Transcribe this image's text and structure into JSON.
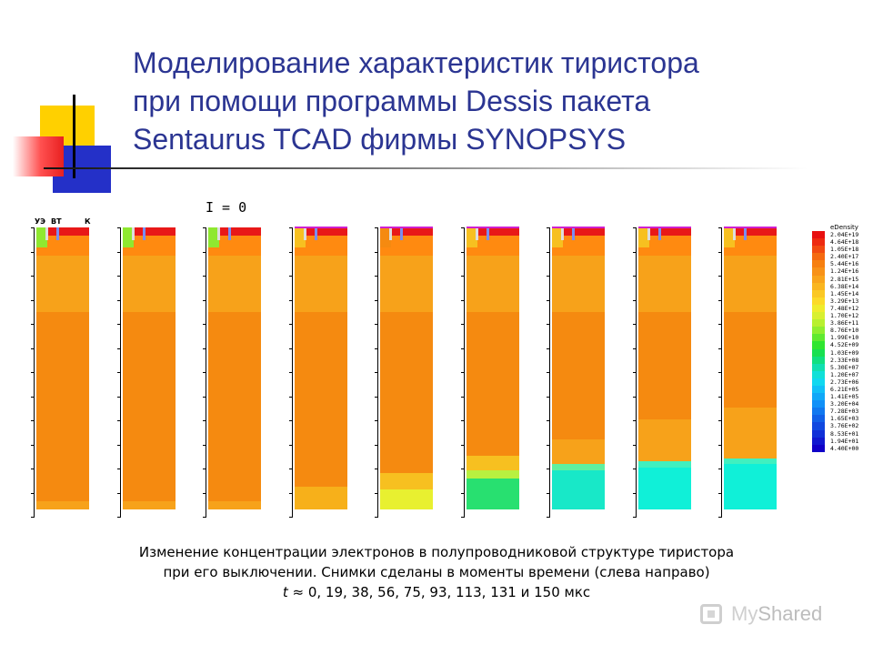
{
  "slide": {
    "title_lines": [
      "Моделирование характеристик тиристора",
      "при помощи программы Dessis пакета",
      "Sentaurus TCAD фирмы SYNOPSYS"
    ],
    "current_label": "I = 0",
    "electrode_labels": [
      "УЭ",
      "ВТ",
      "К"
    ]
  },
  "snapshots": [
    {
      "time": "0",
      "layers": [
        {
          "from": 0,
          "to": 0.03,
          "color": "#e81818"
        },
        {
          "from": 0.03,
          "to": 0.1,
          "color": "#ff8a10"
        },
        {
          "from": 0.1,
          "to": 0.3,
          "color": "#f7a21a"
        },
        {
          "from": 0.3,
          "to": 0.97,
          "color": "#f58a10"
        },
        {
          "from": 0.97,
          "to": 1.0,
          "color": "#f7a21a"
        }
      ]
    },
    {
      "time": "19",
      "layers": [
        {
          "from": 0,
          "to": 0.03,
          "color": "#e81818"
        },
        {
          "from": 0.03,
          "to": 0.1,
          "color": "#ff8a10"
        },
        {
          "from": 0.1,
          "to": 0.3,
          "color": "#f7a21a"
        },
        {
          "from": 0.3,
          "to": 0.97,
          "color": "#f58a10"
        },
        {
          "from": 0.97,
          "to": 1.0,
          "color": "#f7a21a"
        }
      ]
    },
    {
      "time": "38",
      "layers": [
        {
          "from": 0,
          "to": 0.03,
          "color": "#e81818"
        },
        {
          "from": 0.03,
          "to": 0.1,
          "color": "#ff8a10"
        },
        {
          "from": 0.1,
          "to": 0.3,
          "color": "#f7a21a"
        },
        {
          "from": 0.3,
          "to": 0.97,
          "color": "#f58a10"
        },
        {
          "from": 0.97,
          "to": 1.0,
          "color": "#f7a21a"
        }
      ]
    },
    {
      "time": "56",
      "layers": [
        {
          "from": 0,
          "to": 0.03,
          "color": "#e81818"
        },
        {
          "from": 0.03,
          "to": 0.1,
          "color": "#ff8a10"
        },
        {
          "from": 0.1,
          "to": 0.3,
          "color": "#f7a21a"
        },
        {
          "from": 0.3,
          "to": 0.92,
          "color": "#f58a10"
        },
        {
          "from": 0.92,
          "to": 1.0,
          "color": "#f7b01a"
        }
      ]
    },
    {
      "time": "75",
      "layers": [
        {
          "from": 0,
          "to": 0.03,
          "color": "#e81818"
        },
        {
          "from": 0.03,
          "to": 0.1,
          "color": "#ff8a10"
        },
        {
          "from": 0.1,
          "to": 0.3,
          "color": "#f7a21a"
        },
        {
          "from": 0.3,
          "to": 0.87,
          "color": "#f58a10"
        },
        {
          "from": 0.87,
          "to": 0.93,
          "color": "#f7c020"
        },
        {
          "from": 0.93,
          "to": 1.0,
          "color": "#e8f030"
        }
      ]
    },
    {
      "time": "93",
      "layers": [
        {
          "from": 0,
          "to": 0.03,
          "color": "#e81818"
        },
        {
          "from": 0.03,
          "to": 0.1,
          "color": "#ff8a10"
        },
        {
          "from": 0.1,
          "to": 0.3,
          "color": "#f7a21a"
        },
        {
          "from": 0.3,
          "to": 0.81,
          "color": "#f58a10"
        },
        {
          "from": 0.81,
          "to": 0.86,
          "color": "#f7c020"
        },
        {
          "from": 0.86,
          "to": 0.89,
          "color": "#b8f040"
        },
        {
          "from": 0.89,
          "to": 1.0,
          "color": "#28e070"
        }
      ]
    },
    {
      "time": "113",
      "layers": [
        {
          "from": 0,
          "to": 0.03,
          "color": "#e81818"
        },
        {
          "from": 0.03,
          "to": 0.1,
          "color": "#ff8a10"
        },
        {
          "from": 0.1,
          "to": 0.3,
          "color": "#f7a21a"
        },
        {
          "from": 0.3,
          "to": 0.75,
          "color": "#f58a10"
        },
        {
          "from": 0.75,
          "to": 0.84,
          "color": "#f7a21a"
        },
        {
          "from": 0.84,
          "to": 0.86,
          "color": "#60f0a0"
        },
        {
          "from": 0.86,
          "to": 1.0,
          "color": "#18e8c8"
        }
      ]
    },
    {
      "time": "131",
      "layers": [
        {
          "from": 0,
          "to": 0.03,
          "color": "#e81818"
        },
        {
          "from": 0.03,
          "to": 0.1,
          "color": "#ff8a10"
        },
        {
          "from": 0.1,
          "to": 0.3,
          "color": "#f7a21a"
        },
        {
          "from": 0.3,
          "to": 0.68,
          "color": "#f58a10"
        },
        {
          "from": 0.68,
          "to": 0.83,
          "color": "#f7a21a"
        },
        {
          "from": 0.83,
          "to": 0.85,
          "color": "#40f0c0"
        },
        {
          "from": 0.85,
          "to": 1.0,
          "color": "#10f0d8"
        }
      ]
    },
    {
      "time": "150",
      "layers": [
        {
          "from": 0,
          "to": 0.03,
          "color": "#e81818"
        },
        {
          "from": 0.03,
          "to": 0.1,
          "color": "#ff8a10"
        },
        {
          "from": 0.1,
          "to": 0.3,
          "color": "#f7a21a"
        },
        {
          "from": 0.3,
          "to": 0.64,
          "color": "#f58a10"
        },
        {
          "from": 0.64,
          "to": 0.82,
          "color": "#f7a21a"
        },
        {
          "from": 0.82,
          "to": 0.84,
          "color": "#40f0c0"
        },
        {
          "from": 0.84,
          "to": 1.0,
          "color": "#10f0d8"
        }
      ]
    }
  ],
  "legend": {
    "title": "eDensity",
    "entries": [
      {
        "label": "2.04E+19",
        "color": "#e81010"
      },
      {
        "label": "4.64E+18",
        "color": "#ee2a10"
      },
      {
        "label": "1.05E+18",
        "color": "#f24a10"
      },
      {
        "label": "2.40E+17",
        "color": "#f56a10"
      },
      {
        "label": "5.44E+16",
        "color": "#f78010"
      },
      {
        "label": "1.24E+16",
        "color": "#f89218"
      },
      {
        "label": "2.81E+15",
        "color": "#f9a41c"
      },
      {
        "label": "6.38E+14",
        "color": "#fab620"
      },
      {
        "label": "1.45E+14",
        "color": "#fbc824"
      },
      {
        "label": "3.29E+13",
        "color": "#fcda28"
      },
      {
        "label": "7.48E+12",
        "color": "#f0ec2c"
      },
      {
        "label": "1.70E+12",
        "color": "#d8f030"
      },
      {
        "label": "3.86E+11",
        "color": "#b8f030"
      },
      {
        "label": "8.76E+10",
        "color": "#90ee30"
      },
      {
        "label": "1.99E+10",
        "color": "#60ea30"
      },
      {
        "label": "4.52E+09",
        "color": "#30e630"
      },
      {
        "label": "1.03E+09",
        "color": "#18e050"
      },
      {
        "label": "2.33E+08",
        "color": "#10e080"
      },
      {
        "label": "5.30E+07",
        "color": "#10e0b0"
      },
      {
        "label": "1.20E+07",
        "color": "#10e0d8"
      },
      {
        "label": "2.73E+06",
        "color": "#10d8f0"
      },
      {
        "label": "6.21E+05",
        "color": "#10c0f8"
      },
      {
        "label": "1.41E+05",
        "color": "#10a8f8"
      },
      {
        "label": "3.20E+04",
        "color": "#1090f8"
      },
      {
        "label": "7.28E+03",
        "color": "#1078f0"
      },
      {
        "label": "1.65E+03",
        "color": "#1060e8"
      },
      {
        "label": "3.76E+02",
        "color": "#1048e0"
      },
      {
        "label": "8.53E+01",
        "color": "#1030d8"
      },
      {
        "label": "1.94E+01",
        "color": "#1018d0"
      },
      {
        "label": "4.40E+00",
        "color": "#1000c8"
      }
    ]
  },
  "caption": {
    "line1": "Изменение концентрации электронов  в полупроводниковой  структуре тиристора",
    "line2": "при его выключении. Снимки сделаны в моменты времени (слева направо)",
    "t_symbol": "t",
    "approx_symbol": "≈",
    "times_text": "0,  19,  38,  56,  75,  93,  113,  131  и  150",
    "unit": "мкс"
  },
  "watermark": {
    "my": "My",
    "shared": "Shared"
  }
}
